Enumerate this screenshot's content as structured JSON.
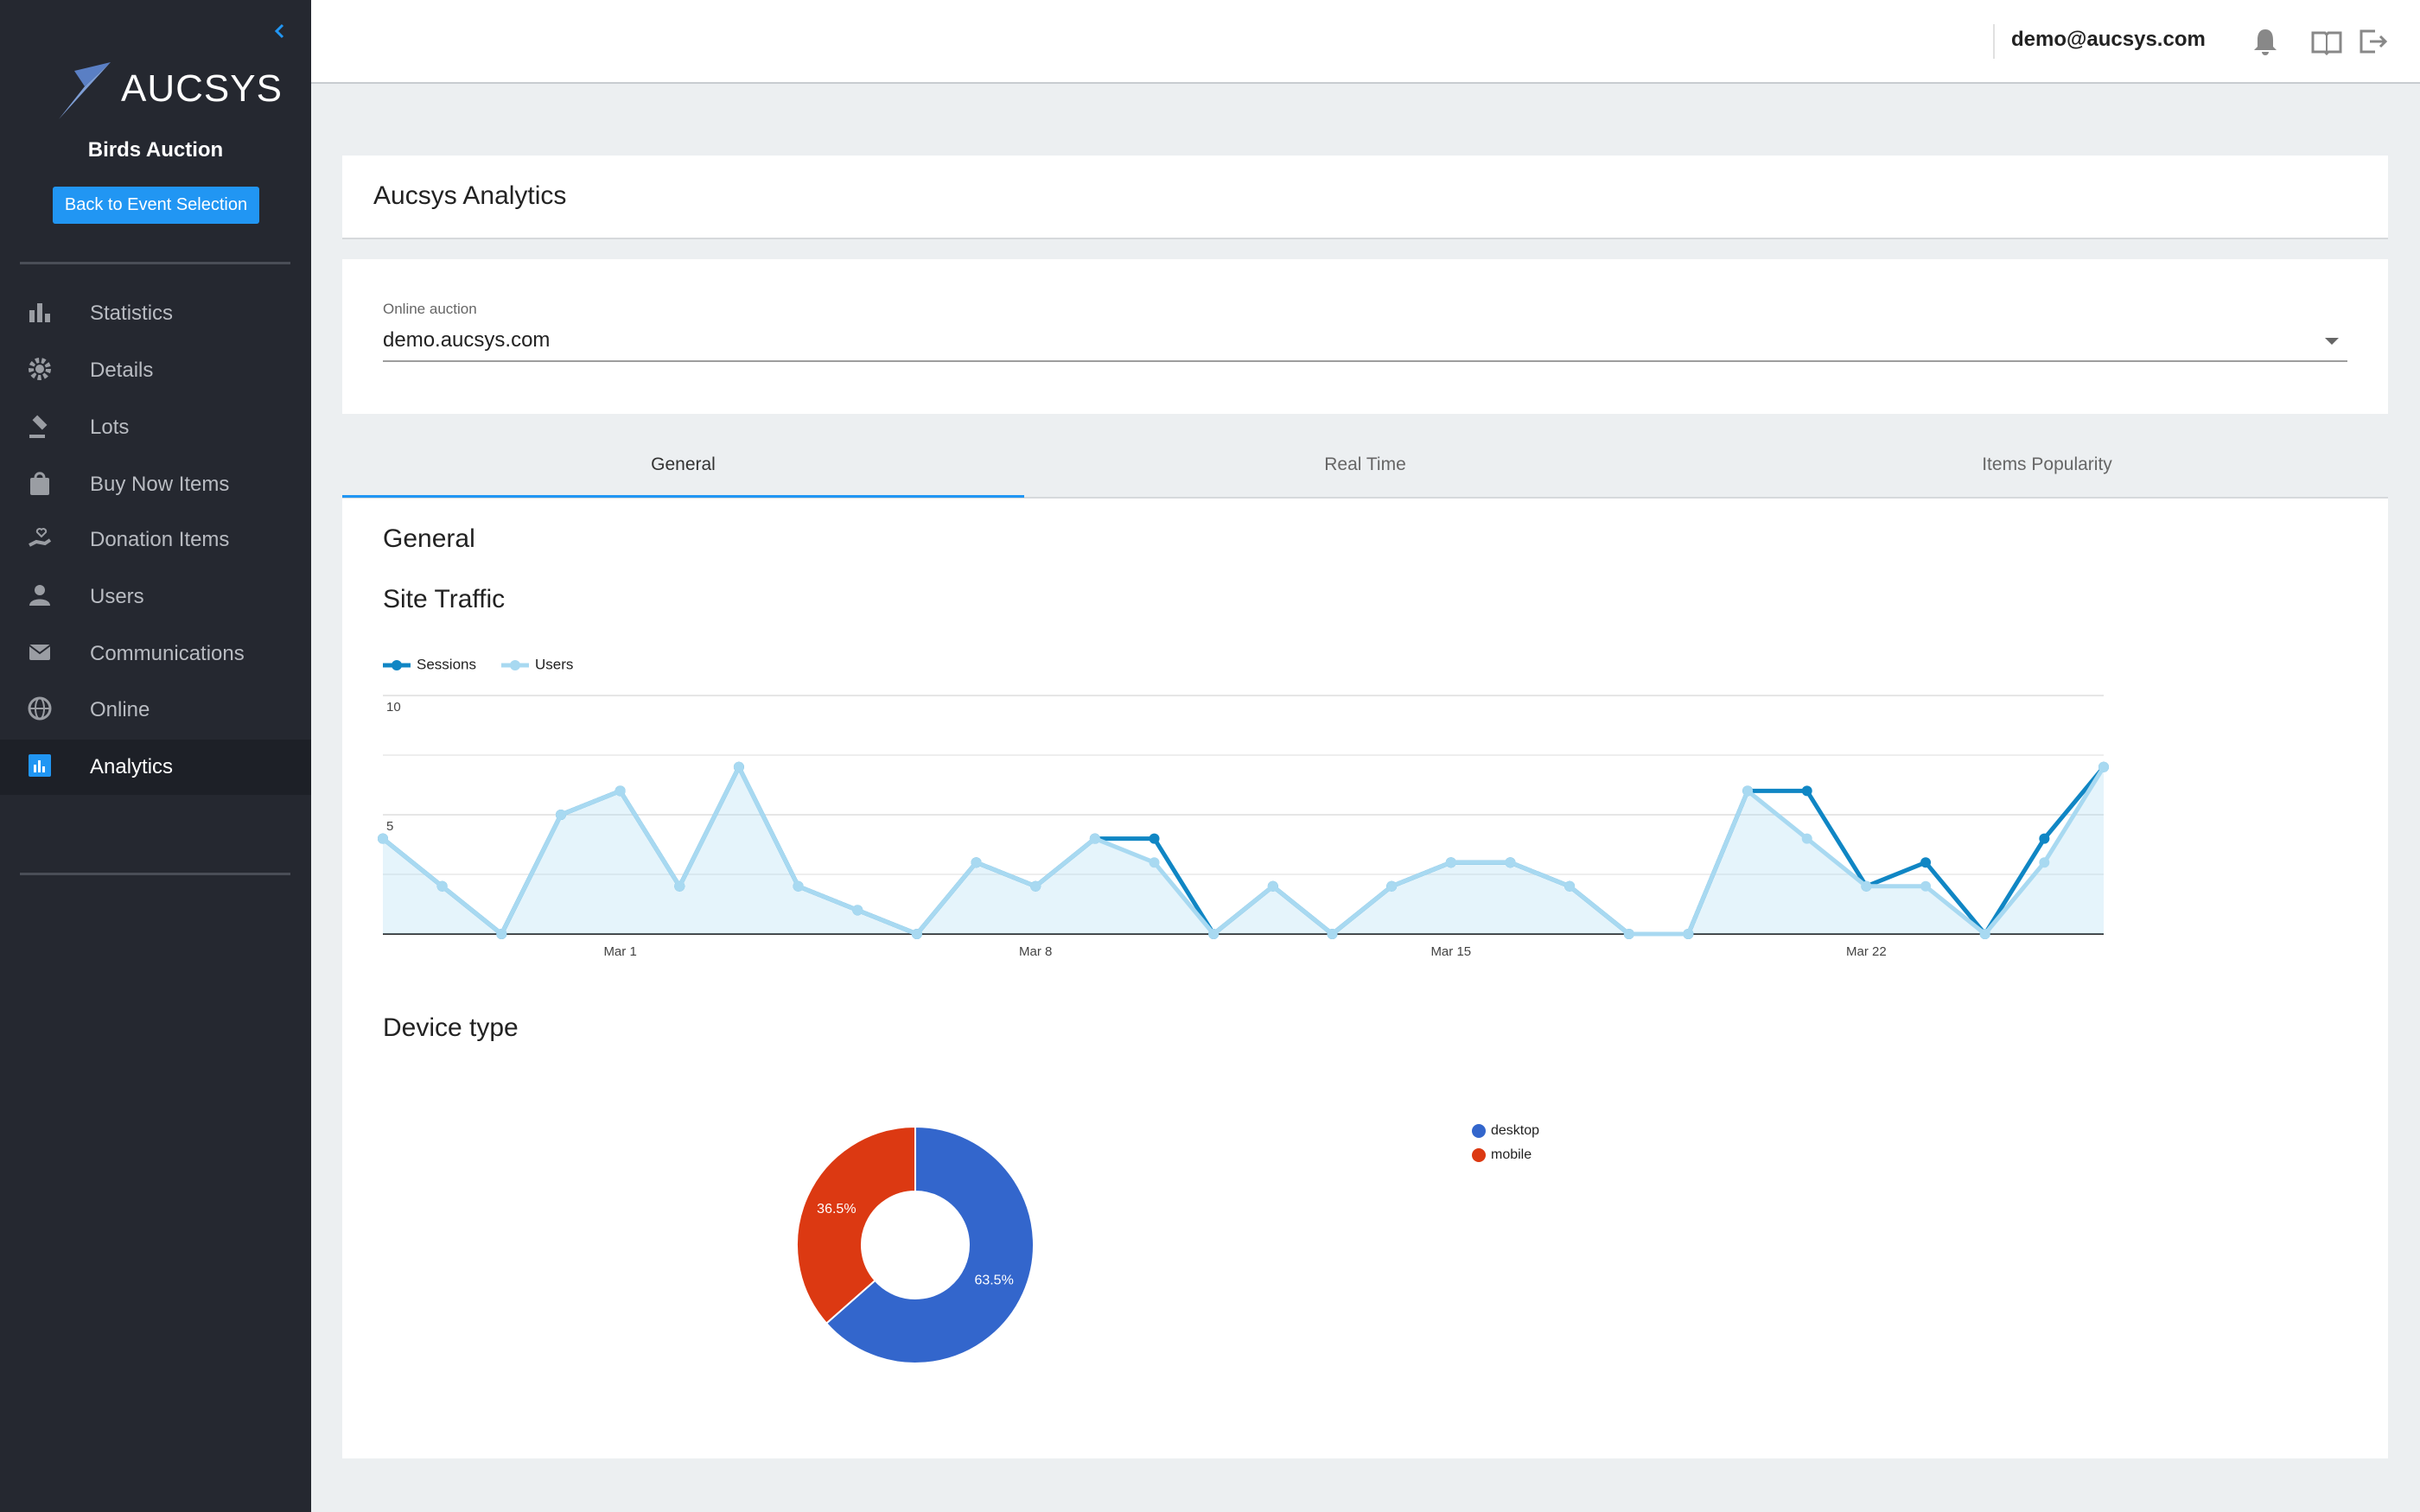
{
  "sidebar": {
    "logo": "AUCSYS",
    "event": "Birds Auction",
    "back_button": "Back to Event Selection",
    "menu": [
      "Statistics",
      "Details",
      "Lots",
      "Buy Now Items",
      "Donation Items",
      "Users",
      "Communications",
      "Online",
      "Analytics"
    ]
  },
  "header": {
    "user": "demo@aucsys.com"
  },
  "page": {
    "title": "Aucsys Analytics",
    "select_label": "Online auction",
    "select_value": "demo.aucsys.com",
    "tabs": [
      "General",
      "Real Time",
      "Items Popularity"
    ],
    "section": "General"
  },
  "chart_data": [
    {
      "type": "line",
      "title": "Site Traffic",
      "categories": [
        null,
        null,
        null,
        null,
        "Mar 1",
        null,
        null,
        null,
        null,
        null,
        null,
        "Mar 8",
        null,
        null,
        null,
        null,
        null,
        null,
        "Mar 15",
        null,
        null,
        null,
        null,
        null,
        null,
        "Mar 22",
        null,
        null,
        null,
        null
      ],
      "series": [
        {
          "name": "Sessions",
          "color": "#1086c4",
          "values": [
            4,
            2,
            0,
            5,
            6,
            2,
            7,
            2,
            1,
            0,
            3,
            2,
            4,
            4,
            0,
            2,
            0,
            2,
            3,
            3,
            2,
            0,
            0,
            6,
            6,
            2,
            3,
            0,
            4,
            7
          ]
        },
        {
          "name": "Users",
          "color": "#a8d9f1",
          "values": [
            4,
            2,
            0,
            5,
            6,
            2,
            7,
            2,
            1,
            0,
            3,
            2,
            4,
            3,
            0,
            2,
            0,
            2,
            3,
            3,
            2,
            0,
            0,
            6,
            4,
            2,
            2,
            0,
            3,
            7
          ]
        }
      ],
      "ylim": [
        0,
        10
      ],
      "yticks": [
        5,
        10
      ],
      "grid": true,
      "legend": "top"
    },
    {
      "type": "pie",
      "title": "Device type",
      "categories": [
        "desktop",
        "mobile"
      ],
      "values": [
        63.5,
        36.5
      ],
      "value_labels": [
        "63.5%",
        "36.5%"
      ],
      "colors": [
        "#3366cc",
        "#dc3912"
      ],
      "legend": "right"
    }
  ]
}
